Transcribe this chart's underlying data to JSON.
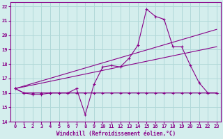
{
  "xlabel": "Windchill (Refroidissement éolien,°C)",
  "xlim": [
    -0.5,
    23.5
  ],
  "ylim": [
    14,
    22.3
  ],
  "yticks": [
    14,
    15,
    16,
    17,
    18,
    19,
    20,
    21,
    22
  ],
  "xticks": [
    0,
    1,
    2,
    3,
    4,
    5,
    6,
    7,
    8,
    9,
    10,
    11,
    12,
    13,
    14,
    15,
    16,
    17,
    18,
    19,
    20,
    21,
    22,
    23
  ],
  "background_color": "#d4eeed",
  "grid_color": "#b0d8d8",
  "line_color": "#880088",
  "line1_x": [
    0,
    1,
    2,
    3,
    4,
    5,
    6,
    7,
    8,
    9,
    10,
    11,
    12,
    13,
    14,
    15,
    16,
    17,
    18,
    19,
    20,
    21,
    22,
    23
  ],
  "line1_y": [
    16.3,
    16.0,
    16.0,
    16.0,
    16.0,
    16.0,
    16.0,
    16.0,
    16.0,
    16.0,
    16.0,
    16.0,
    16.0,
    16.0,
    16.0,
    16.0,
    16.0,
    16.0,
    16.0,
    16.0,
    16.0,
    16.0,
    16.0,
    16.0
  ],
  "line2_x": [
    0,
    23
  ],
  "line2_y": [
    16.3,
    20.4
  ],
  "line3_x": [
    0,
    23
  ],
  "line3_y": [
    16.3,
    19.2
  ],
  "line4_x": [
    0,
    1,
    2,
    3,
    4,
    5,
    6,
    7,
    8,
    9,
    10,
    11,
    12,
    13,
    14,
    15,
    16,
    17,
    18,
    19,
    20,
    21,
    22,
    23
  ],
  "line4_y": [
    16.3,
    16.0,
    15.9,
    15.9,
    16.0,
    16.0,
    16.0,
    16.3,
    14.5,
    16.6,
    17.8,
    17.9,
    17.8,
    18.4,
    19.3,
    21.8,
    21.3,
    21.1,
    19.2,
    19.2,
    17.9,
    16.7,
    16.0,
    16.0
  ]
}
